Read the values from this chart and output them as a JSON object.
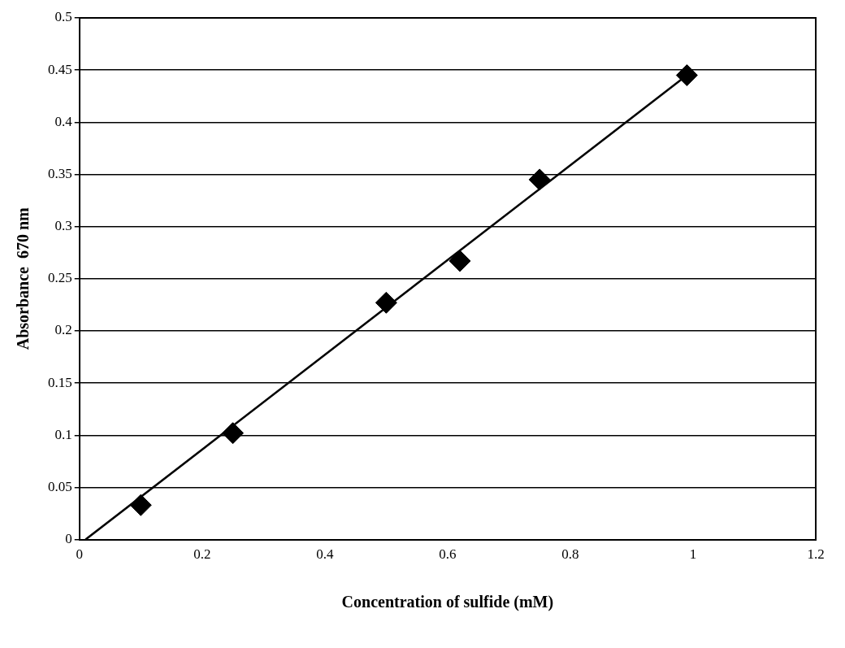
{
  "chart_data": {
    "type": "scatter",
    "xlabel": "Concentration of sulfide (mM)",
    "ylabel": "Absorbance  670 nm",
    "x": [
      0.1,
      0.25,
      0.5,
      0.62,
      0.75,
      0.99
    ],
    "series": [
      {
        "color": "#000000",
        "values": [
          0.033,
          0.102,
          0.227,
          0.267,
          0.345,
          0.445
        ],
        "marker": "diamond"
      },
      {
        "type": "line",
        "color": "#000000",
        "x": [
          0.01,
          0.99
        ],
        "values": [
          0,
          0.445
        ],
        "marker": "none",
        "line_style": "solid"
      }
    ],
    "xlim": [
      0,
      1.2
    ],
    "xticks": [
      0,
      0.2,
      0.4,
      0.6,
      0.8,
      1,
      1.2
    ],
    "ylim": [
      0,
      0.5
    ],
    "yticks": [
      0,
      0.05,
      0.1,
      0.15,
      0.2,
      0.25,
      0.3,
      0.35,
      0.4,
      0.45,
      0.5
    ],
    "grid": "y",
    "legend": false
  }
}
